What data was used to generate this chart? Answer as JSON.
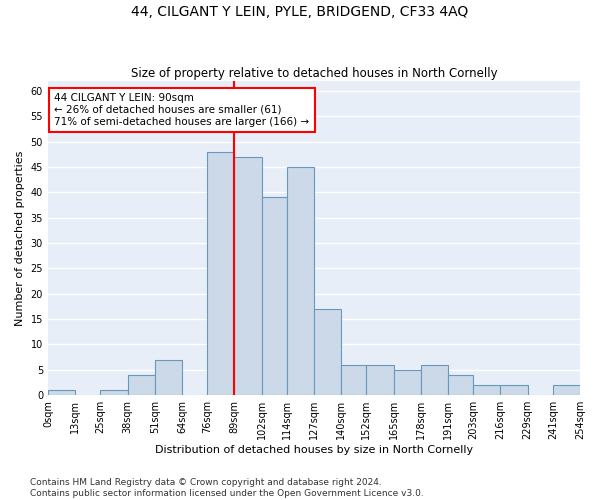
{
  "title": "44, CILGANT Y LEIN, PYLE, BRIDGEND, CF33 4AQ",
  "subtitle": "Size of property relative to detached houses in North Cornelly",
  "xlabel": "Distribution of detached houses by size in North Cornelly",
  "ylabel": "Number of detached properties",
  "bar_color": "#ccd9e8",
  "bar_edge_color": "#6699bb",
  "bg_color": "#e8eef8",
  "grid_color": "white",
  "vline_x": 89,
  "vline_color": "red",
  "annotation_text": "44 CILGANT Y LEIN: 90sqm\n← 26% of detached houses are smaller (61)\n71% of semi-detached houses are larger (166) →",
  "annotation_box_color": "white",
  "annotation_box_edge": "red",
  "bins": [
    0,
    13,
    25,
    38,
    51,
    64,
    76,
    89,
    102,
    114,
    127,
    140,
    152,
    165,
    178,
    191,
    203,
    216,
    229,
    241,
    254
  ],
  "bin_labels": [
    "0sqm",
    "13sqm",
    "25sqm",
    "38sqm",
    "51sqm",
    "64sqm",
    "76sqm",
    "89sqm",
    "102sqm",
    "114sqm",
    "127sqm",
    "140sqm",
    "152sqm",
    "165sqm",
    "178sqm",
    "191sqm",
    "203sqm",
    "216sqm",
    "229sqm",
    "241sqm",
    "254sqm"
  ],
  "bar_heights": [
    1,
    0,
    1,
    4,
    7,
    0,
    48,
    47,
    39,
    45,
    17,
    6,
    6,
    5,
    6,
    4,
    2,
    2,
    0,
    2
  ],
  "ylim": [
    0,
    62
  ],
  "yticks": [
    0,
    5,
    10,
    15,
    20,
    25,
    30,
    35,
    40,
    45,
    50,
    55,
    60
  ],
  "footer_text": "Contains HM Land Registry data © Crown copyright and database right 2024.\nContains public sector information licensed under the Open Government Licence v3.0.",
  "title_fontsize": 10,
  "subtitle_fontsize": 8.5,
  "xlabel_fontsize": 8,
  "ylabel_fontsize": 8,
  "tick_fontsize": 7,
  "footer_fontsize": 6.5
}
